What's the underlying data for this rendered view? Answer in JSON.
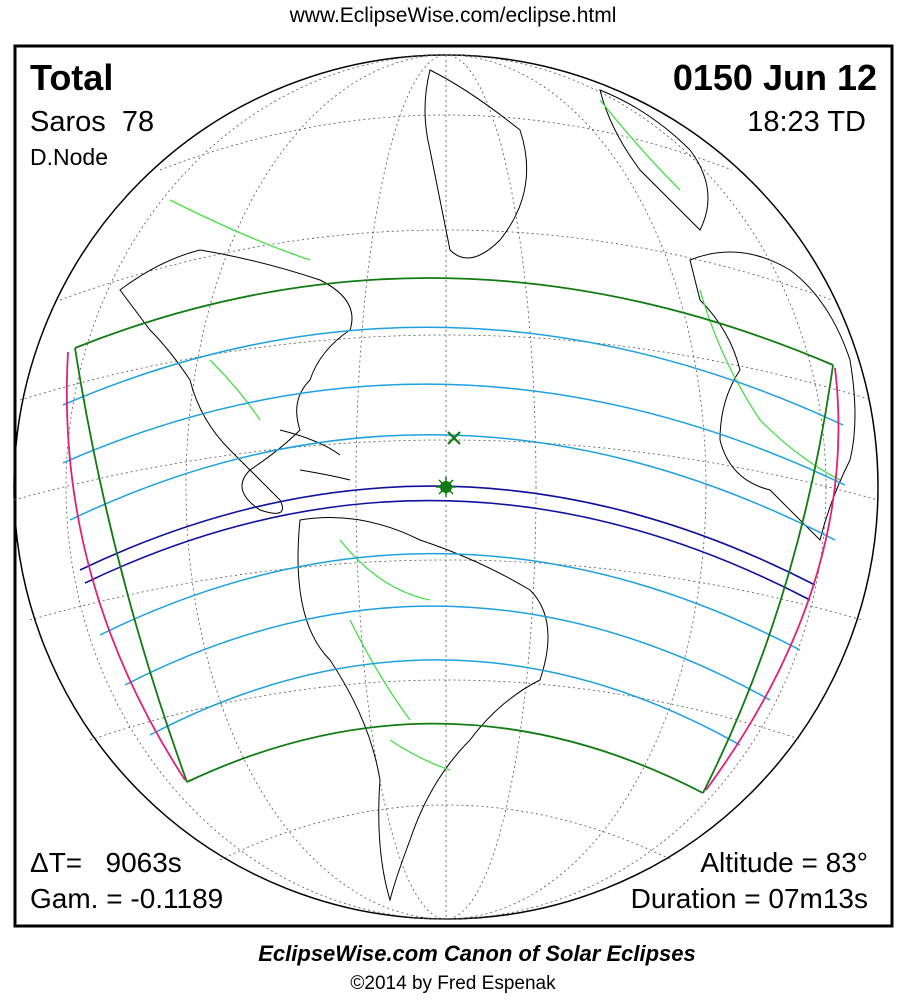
{
  "header": {
    "url": "www.EclipseWise.com/eclipse.html"
  },
  "map": {
    "eclipse_type": "Total",
    "saros": "Saros  78",
    "node": "D.Node",
    "date": "0150 Jun 12",
    "time": "18:23 TD",
    "delta_t": "ΔT=   9063s",
    "gamma": "Gam. = -0.1189",
    "altitude": "Altitude = 83°",
    "duration": "Duration = 07m13s"
  },
  "footer": {
    "title": "EclipseWise.com Canon of Solar Eclipses",
    "copyright": "©2014 by Fred Espenak"
  }
}
